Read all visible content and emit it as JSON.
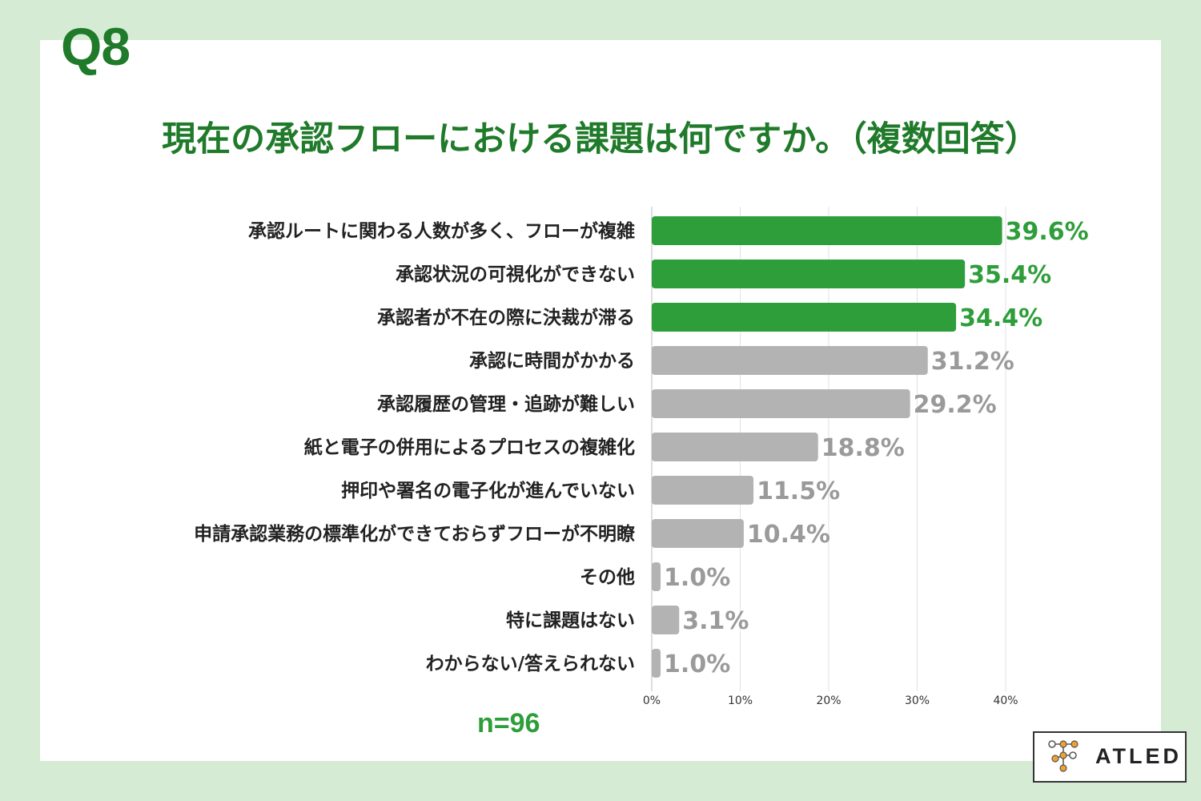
{
  "question_number": "Q8",
  "title": "現在の承認フローにおける課題は何ですか。（複数回答）",
  "sample_size": "n=96",
  "logo": {
    "text": "ATLED",
    "icon": "atled-node-logo-icon"
  },
  "colors": {
    "highlight": "#2e9e3a",
    "normal": "#b3b3b3",
    "highlight_text": "#2e9e3a",
    "normal_text": "#9a9a9a",
    "title": "#1f7a2a"
  },
  "chart_data": {
    "type": "bar",
    "orientation": "horizontal",
    "title": "現在の承認フローにおける課題は何ですか。（複数回答）",
    "categories": [
      "承認ルートに関わる人数が多く、フローが複雑",
      "承認状況の可視化ができない",
      "承認者が不在の際に決裁が滞る",
      "承認に時間がかかる",
      "承認履歴の管理・追跡が難しい",
      "紙と電子の併用によるプロセスの複雑化",
      "押印や署名の電子化が進んでいない",
      "申請承認業務の標準化ができておらずフローが不明瞭",
      "その他",
      "特に課題はない",
      "わからない/答えられない"
    ],
    "values": [
      39.6,
      35.4,
      34.4,
      31.2,
      29.2,
      18.8,
      11.5,
      10.4,
      1.0,
      3.1,
      1.0
    ],
    "value_labels": [
      "39.6%",
      "35.4%",
      "34.4%",
      "31.2%",
      "29.2%",
      "18.8%",
      "11.5%",
      "10.4%",
      "1.0%",
      "3.1%",
      "1.0%"
    ],
    "highlighted": [
      true,
      true,
      true,
      false,
      false,
      false,
      false,
      false,
      false,
      false,
      false
    ],
    "xlim": [
      0,
      40
    ],
    "ticks": [
      0,
      10,
      20,
      30,
      40
    ],
    "tick_labels": [
      "0%",
      "10%",
      "20%",
      "30%",
      "40%"
    ],
    "grid": true,
    "xlabel": "",
    "ylabel": ""
  }
}
